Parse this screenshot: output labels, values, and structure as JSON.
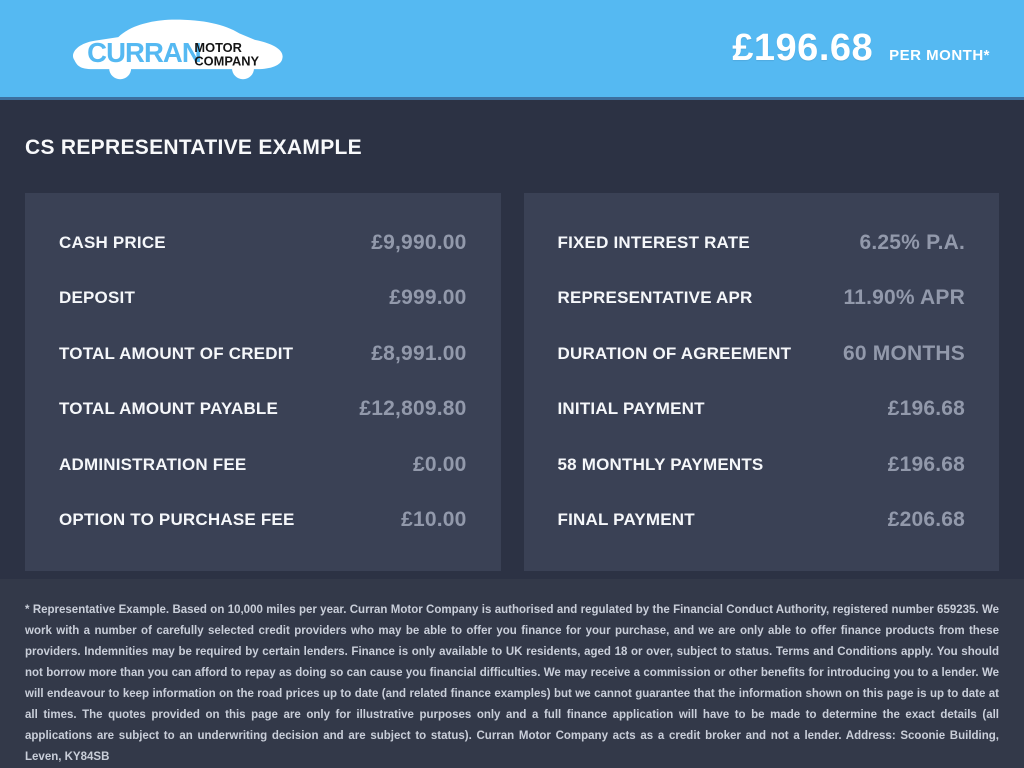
{
  "header": {
    "logo": {
      "brand": "CURRAN",
      "sub1": "MOTOR",
      "sub2": "COMPANY"
    },
    "price": "£196.68",
    "price_suffix": "PER MONTH*"
  },
  "title": "CS REPRESENTATIVE EXAMPLE",
  "panels": {
    "left": {
      "rows": [
        {
          "label": "CASH PRICE",
          "value": "£9,990.00"
        },
        {
          "label": "DEPOSIT",
          "value": "£999.00"
        },
        {
          "label": "TOTAL AMOUNT OF CREDIT",
          "value": "£8,991.00"
        },
        {
          "label": "TOTAL AMOUNT PAYABLE",
          "value": "£12,809.80"
        },
        {
          "label": "ADMINISTRATION FEE",
          "value": "£0.00"
        },
        {
          "label": "OPTION TO PURCHASE FEE",
          "value": "£10.00"
        }
      ]
    },
    "right": {
      "rows": [
        {
          "label": "FIXED INTEREST RATE",
          "value": "6.25% P.A."
        },
        {
          "label": "REPRESENTATIVE APR",
          "value": "11.90% APR"
        },
        {
          "label": "DURATION OF AGREEMENT",
          "value": "60 MONTHS"
        },
        {
          "label": "INITIAL PAYMENT",
          "value": "£196.68"
        },
        {
          "label": "58 MONTHLY PAYMENTS",
          "value": "£196.68"
        },
        {
          "label": "FINAL PAYMENT",
          "value": "£206.68"
        }
      ]
    }
  },
  "footer": {
    "disclaimer": "* Representative Example. Based on 10,000 miles per year. Curran Motor Company is authorised and regulated by the Financial Conduct Authority, registered number 659235. We work with a number of carefully selected credit providers who may be able to offer you finance for your purchase, and we are only able to offer finance products from these providers. Indemnities may be required by certain lenders. Finance is only available to UK residents, aged 18 or over, subject to status. Terms and Conditions apply. You should not borrow more than you can afford to repay as doing so can cause you financial difficulties. We may receive a commission or other benefits for introducing you to a lender. We will endeavour to keep information on the road prices up to date (and related finance examples) but we cannot guarantee that the information shown on this page is up to date at all times. The quotes provided on this page are only for illustrative purposes only and a full finance application will have to be made to determine the exact details (all applications are subject to an underwriting decision and are subject to status). Curran Motor Company acts as a credit broker and not a lender. Address: Scoonie Building, Leven, KY84SB"
  },
  "colors": {
    "header_bg": "#55b9f2",
    "page_bg": "#2c3244",
    "panel_bg": "#3a4155",
    "footer_bg": "#333949",
    "label_text": "#f5f7fa",
    "value_text": "#9299ab",
    "logo_black": "#141414"
  }
}
